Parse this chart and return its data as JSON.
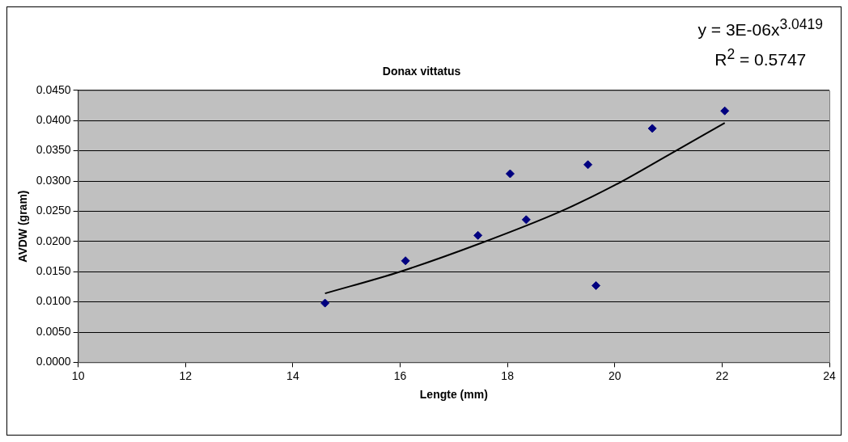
{
  "chart_data": {
    "type": "scatter",
    "title": "Donax vittatus",
    "xlabel": "Lengte (mm)",
    "ylabel": "AVDW (gram)",
    "annotations": [
      "y = 3E-06x$^{3.0419}$",
      "R$^{2}$ = 0.5747"
    ],
    "xlim": [
      10,
      24
    ],
    "xticks": [
      10,
      12,
      14,
      16,
      18,
      20,
      22,
      24
    ],
    "ylim": [
      0,
      0.045
    ],
    "yticks": [
      {
        "value": 0,
        "label": "0.0000"
      },
      {
        "value": 0.005,
        "label": "0.0050"
      },
      {
        "value": 0.01,
        "label": "0.0100"
      },
      {
        "value": 0.015,
        "label": "0.0150"
      },
      {
        "value": 0.02,
        "label": "0.0200"
      },
      {
        "value": 0.025,
        "label": "0.0250"
      },
      {
        "value": 0.03,
        "label": "0.0300"
      },
      {
        "value": 0.035,
        "label": "0.0350"
      },
      {
        "value": 0.04,
        "label": "0.0400"
      },
      {
        "value": 0.045,
        "label": "0.0450"
      }
    ],
    "grid": "y",
    "legend": false,
    "series": [
      {
        "marker": "diamond",
        "color": "#000080",
        "x": [
          14.6,
          16.1,
          17.45,
          18.05,
          18.35,
          19.5,
          19.65,
          20.7,
          22.05
        ],
        "values": [
          0.0098,
          0.0168,
          0.021,
          0.0312,
          0.0236,
          0.0327,
          0.0127,
          0.0387,
          0.0416
        ]
      },
      {
        "type": "line",
        "color": "#000000",
        "x": [
          14.6,
          16,
          17.5,
          19,
          20,
          21,
          22.05
        ],
        "values": [
          0.0114,
          0.015,
          0.0197,
          0.025,
          0.0293,
          0.0343,
          0.0396
        ]
      }
    ]
  }
}
